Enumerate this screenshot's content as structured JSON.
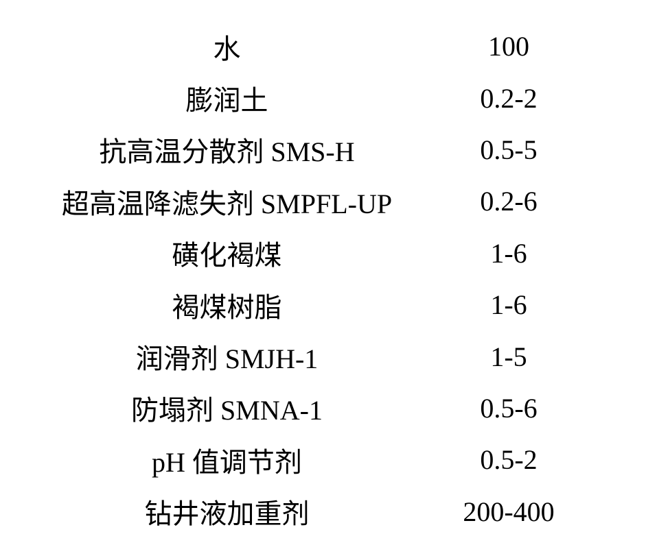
{
  "table": {
    "rows": [
      {
        "label": "水",
        "value": "100"
      },
      {
        "label": "膨润土",
        "value": "0.2-2"
      },
      {
        "label": "抗高温分散剂 SMS-H",
        "value": "0.5-5"
      },
      {
        "label": "超高温降滤失剂 SMPFL-UP",
        "value": "0.2-6"
      },
      {
        "label": "磺化褐煤",
        "value": "1-6"
      },
      {
        "label": "褐煤树脂",
        "value": "1-6"
      },
      {
        "label": "润滑剂 SMJH-1",
        "value": "1-5"
      },
      {
        "label": "防塌剂 SMNA-1",
        "value": "0.5-6"
      },
      {
        "label": "pH 值调节剂",
        "value": "0.5-2"
      },
      {
        "label": "钻井液加重剂",
        "value": "200-400"
      }
    ],
    "font_size": 40,
    "text_color": "#000000",
    "background_color": "#ffffff"
  }
}
